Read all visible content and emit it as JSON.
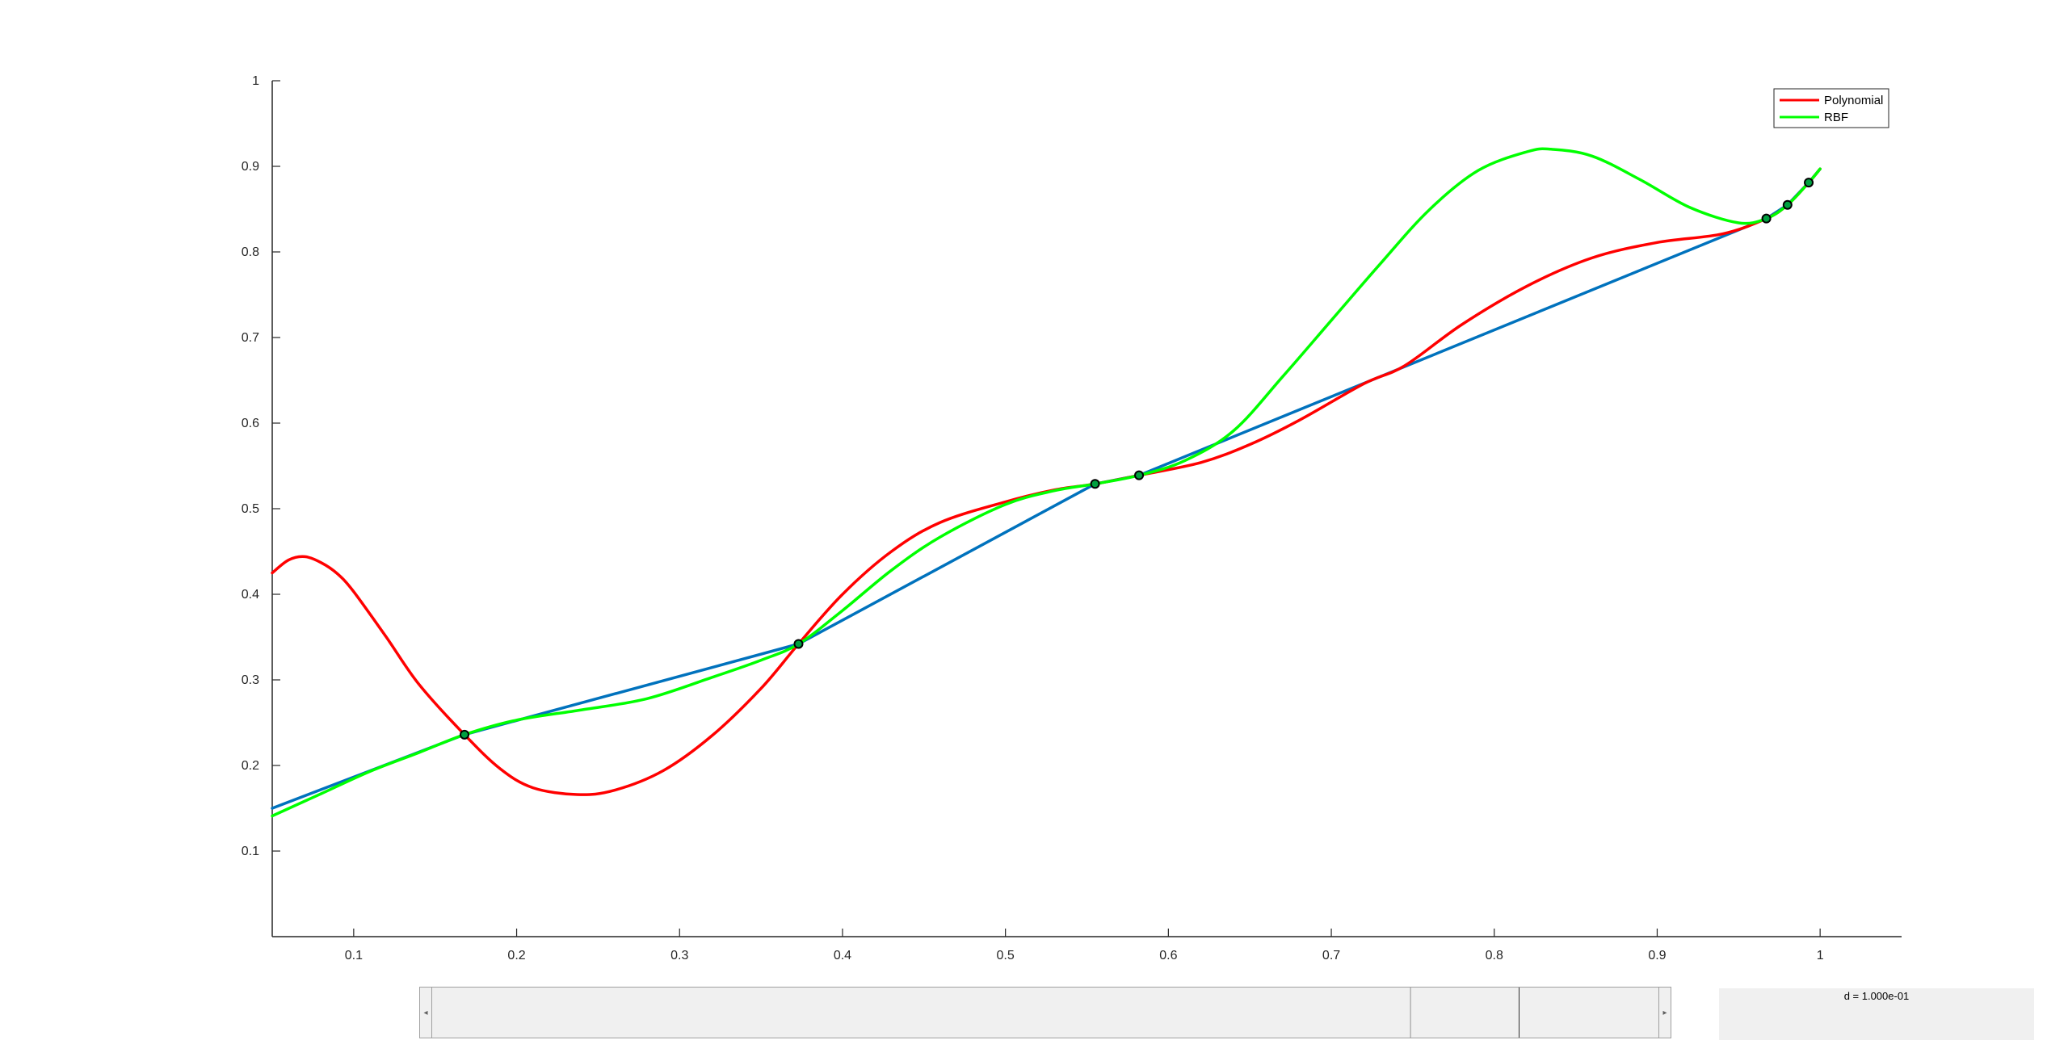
{
  "chart_data": {
    "type": "line",
    "xlim": [
      0.05,
      1.05
    ],
    "ylim": [
      0.0,
      1.0
    ],
    "xticks": [
      "0.1",
      "0.2",
      "0.3",
      "0.4",
      "0.5",
      "0.6",
      "0.7",
      "0.8",
      "0.9",
      "1"
    ],
    "yticks": [
      "0.1",
      "0.2",
      "0.3",
      "0.4",
      "0.5",
      "0.6",
      "0.7",
      "0.8",
      "0.9",
      "1"
    ],
    "legend_position": "top-right",
    "colors": {
      "linear": "#0072BD",
      "poly": "#ff0000",
      "rbf": "#00ff00",
      "points": "#000000"
    },
    "points": {
      "x": [
        0.168,
        0.373,
        0.555,
        0.582,
        0.967,
        0.98,
        0.993
      ],
      "y": [
        0.236,
        0.342,
        0.529,
        0.539,
        0.839,
        0.855,
        0.881
      ]
    },
    "series": [
      {
        "key": "linear",
        "x": [
          0.05,
          0.168,
          0.373,
          0.555,
          0.582,
          0.967,
          0.98,
          0.993,
          1.0
        ],
        "y": [
          0.15,
          0.236,
          0.342,
          0.529,
          0.539,
          0.839,
          0.855,
          0.881,
          0.897
        ]
      },
      {
        "key": "poly",
        "name": "Polynomial",
        "x": [
          0.05,
          0.06,
          0.07,
          0.08,
          0.09,
          0.1,
          0.12,
          0.14,
          0.168,
          0.19,
          0.21,
          0.237,
          0.26,
          0.29,
          0.32,
          0.35,
          0.373,
          0.4,
          0.43,
          0.46,
          0.5,
          0.53,
          0.555,
          0.582,
          0.62,
          0.65,
          0.68,
          0.72,
          0.745,
          0.78,
          0.82,
          0.86,
          0.9,
          0.94,
          0.967,
          0.98,
          0.993,
          1.0
        ],
        "y": [
          0.425,
          0.44,
          0.444,
          0.437,
          0.424,
          0.403,
          0.35,
          0.295,
          0.236,
          0.196,
          0.174,
          0.166,
          0.171,
          0.194,
          0.235,
          0.29,
          0.342,
          0.4,
          0.45,
          0.484,
          0.508,
          0.522,
          0.529,
          0.539,
          0.554,
          0.575,
          0.603,
          0.646,
          0.667,
          0.715,
          0.76,
          0.793,
          0.811,
          0.821,
          0.839,
          0.855,
          0.881,
          0.897
        ]
      },
      {
        "key": "rbf",
        "name": "RBF",
        "x": [
          0.05,
          0.08,
          0.11,
          0.14,
          0.168,
          0.2,
          0.24,
          0.28,
          0.32,
          0.35,
          0.373,
          0.4,
          0.43,
          0.46,
          0.5,
          0.53,
          0.555,
          0.582,
          0.61,
          0.64,
          0.67,
          0.7,
          0.73,
          0.76,
          0.79,
          0.82,
          0.835,
          0.86,
          0.89,
          0.92,
          0.95,
          0.967,
          0.98,
          0.993,
          1.0
        ],
        "y": [
          0.141,
          0.167,
          0.193,
          0.215,
          0.236,
          0.253,
          0.265,
          0.278,
          0.303,
          0.323,
          0.342,
          0.381,
          0.428,
          0.467,
          0.505,
          0.521,
          0.529,
          0.539,
          0.556,
          0.591,
          0.654,
          0.72,
          0.786,
          0.849,
          0.895,
          0.917,
          0.92,
          0.912,
          0.884,
          0.852,
          0.834,
          0.839,
          0.855,
          0.881,
          0.897
        ]
      }
    ]
  },
  "slider": {
    "left_arrow": "◂",
    "right_arrow": "▸",
    "value": 0.5
  },
  "readout": {
    "text": "d = 1.000e-01"
  }
}
